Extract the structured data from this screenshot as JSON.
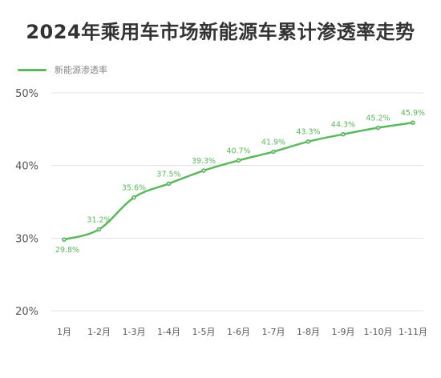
{
  "title": "2024年乘用车市场新能源车累计渗透率走势",
  "legend": {
    "label": "新能源渗透率"
  },
  "colors": {
    "series": "#5cb85c",
    "label": "#5cb85c",
    "grid": "#e3e3e3",
    "axis_text": "#555555",
    "marker_center": "#ffffff"
  },
  "chart_data": {
    "type": "line",
    "title": "2024年乘用车市场新能源车累计渗透率走势",
    "categories": [
      "1月",
      "1-2月",
      "1-3月",
      "1-4月",
      "1-5月",
      "1-6月",
      "1-7月",
      "1-8月",
      "1-9月",
      "1-10月",
      "1-11月"
    ],
    "series": [
      {
        "name": "新能源渗透率",
        "values": [
          29.8,
          31.2,
          35.6,
          37.5,
          39.3,
          40.7,
          41.9,
          43.3,
          44.3,
          45.2,
          45.9
        ],
        "labels": [
          "29.8%",
          "31.2%",
          "35.6%",
          "37.5%",
          "39.3%",
          "40.7%",
          "41.9%",
          "43.3%",
          "44.3%",
          "45.2%",
          "45.9%"
        ]
      }
    ],
    "yticks": [
      20,
      30,
      40,
      50
    ],
    "ytick_labels": [
      "20%",
      "30%",
      "40%",
      "50%"
    ],
    "ylim": [
      20,
      50
    ],
    "grid": true,
    "legend_position": "top-left",
    "xlabel": "",
    "ylabel": ""
  }
}
